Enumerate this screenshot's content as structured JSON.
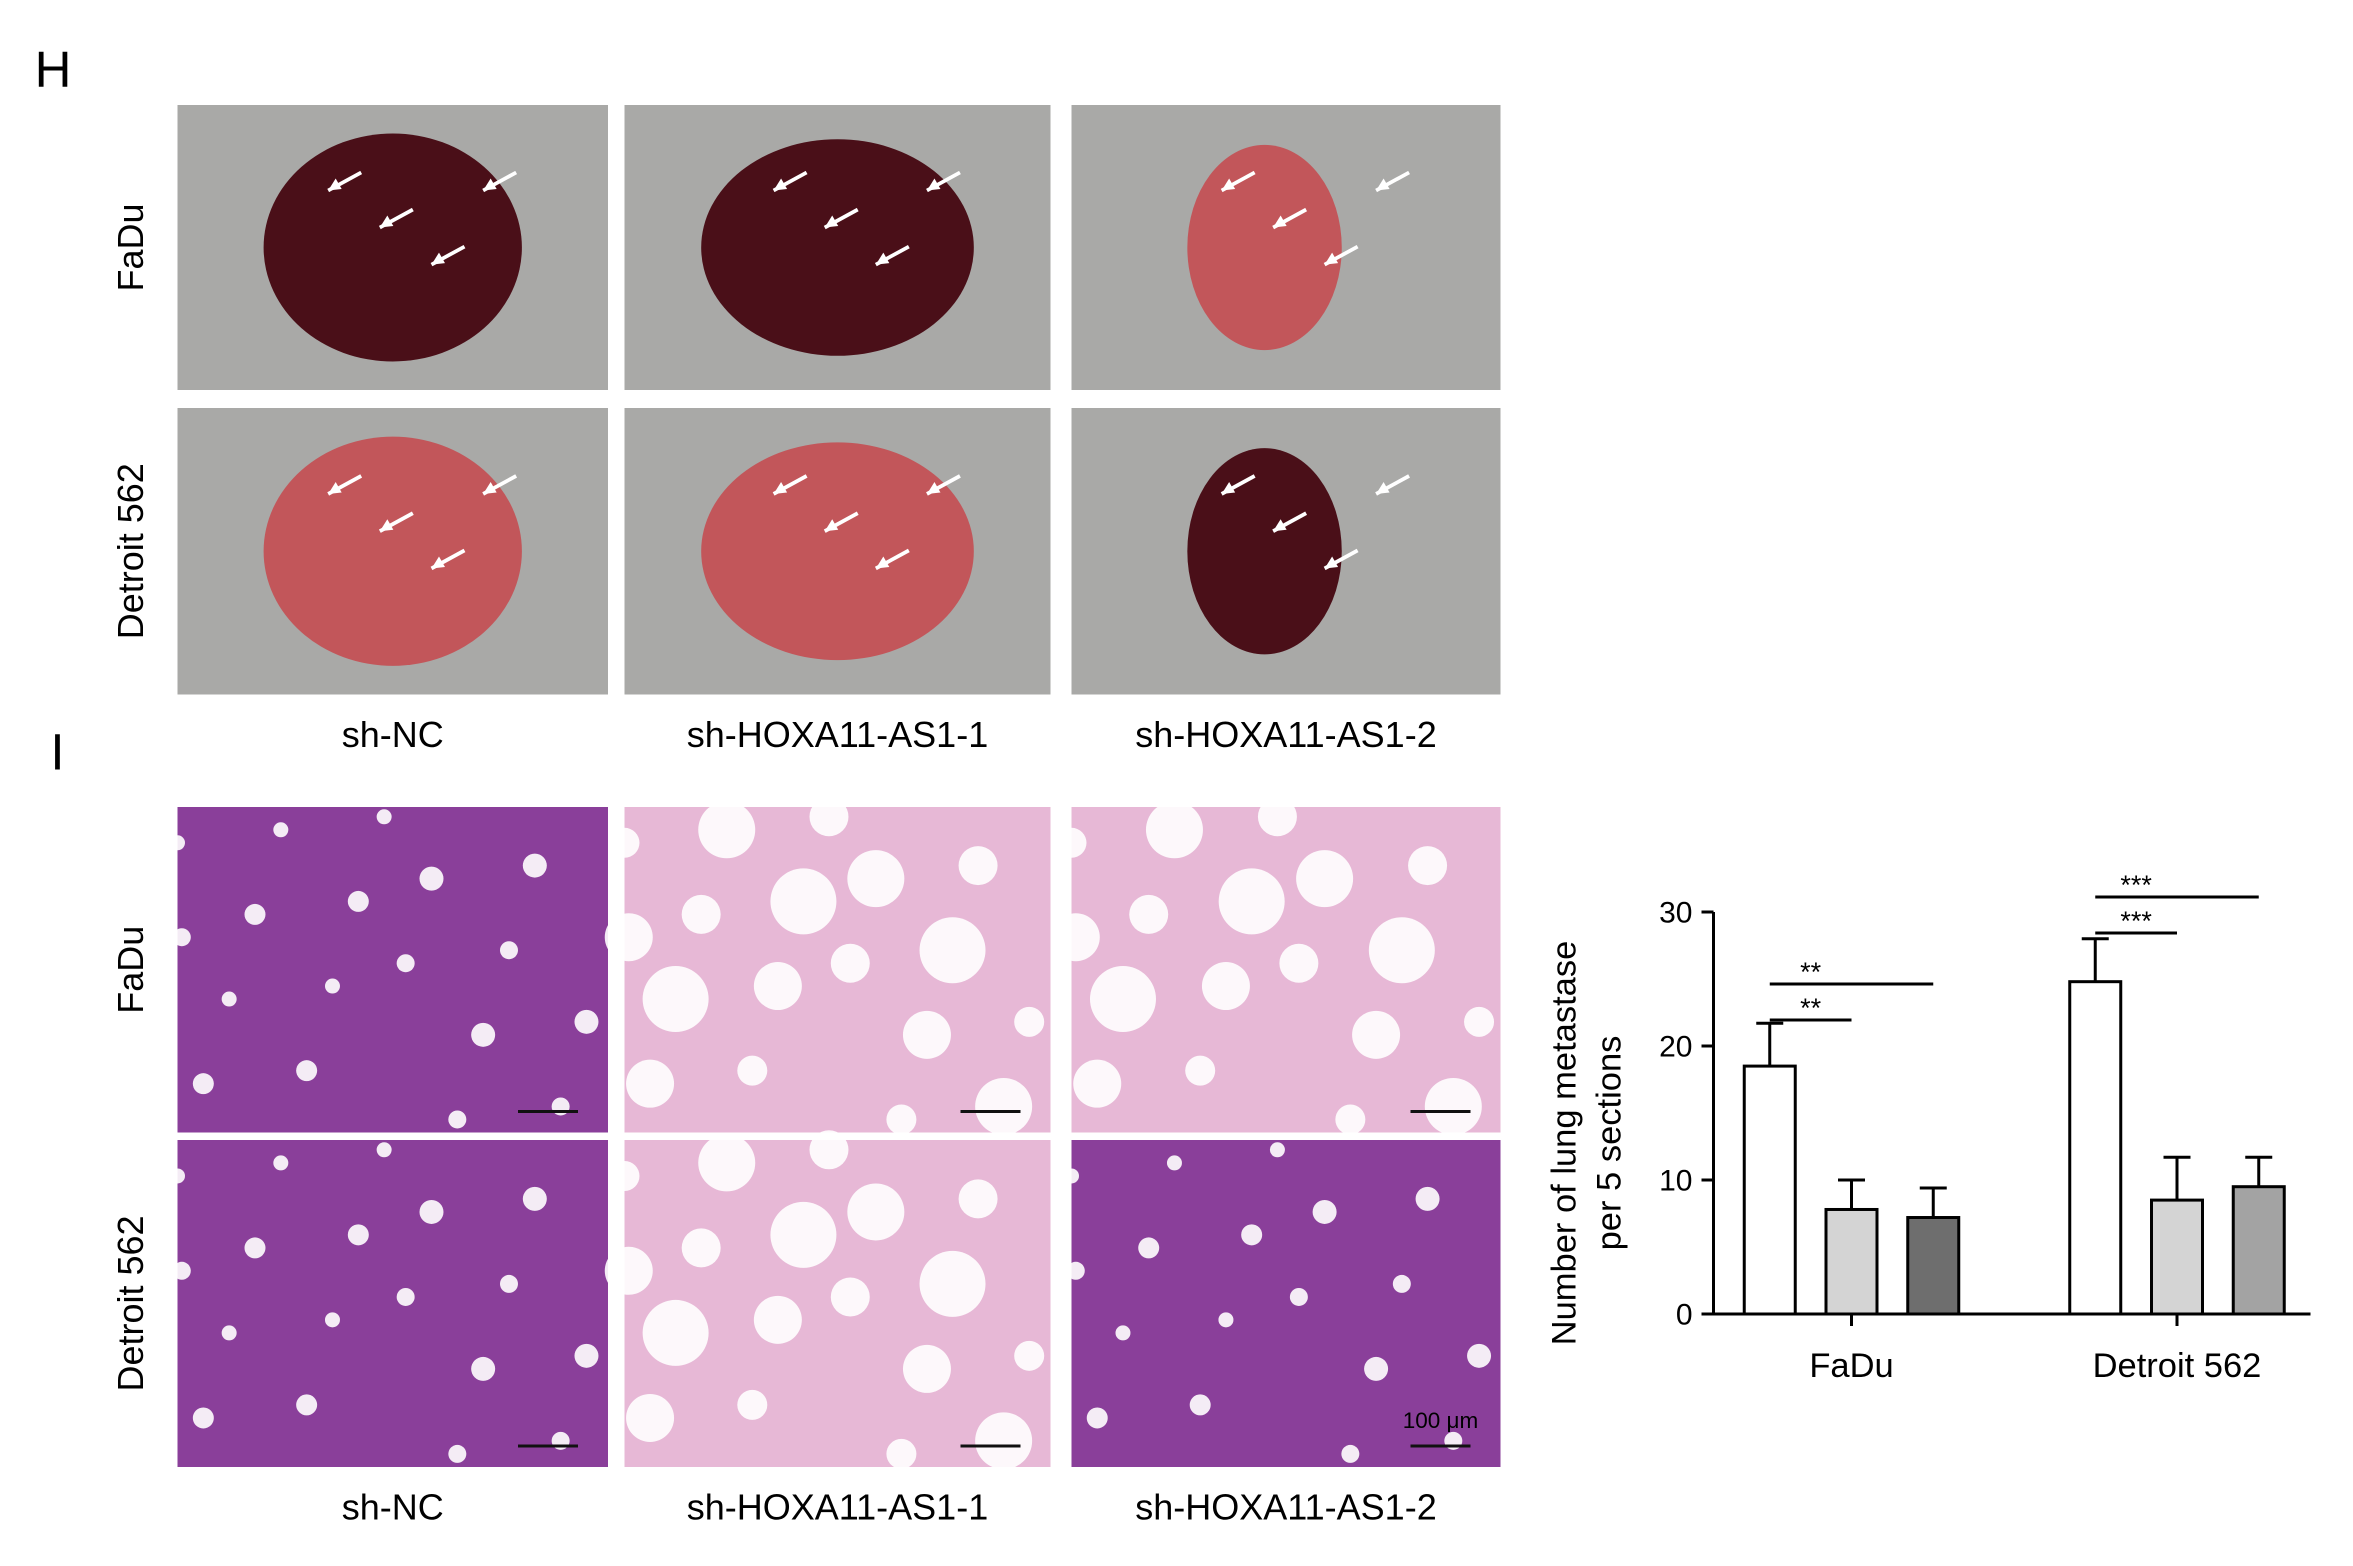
{
  "panels": [
    {
      "label": "H",
      "rows": [
        "FaDu",
        "Detroit 562"
      ],
      "columns": [
        "sh-NC",
        "sh-HOXA11-AS1-1",
        "sh-HOXA11-AS1-2"
      ]
    },
    {
      "label": "I",
      "rows": [
        "FaDu",
        "Detroit 562"
      ],
      "columns": [
        "sh-NC",
        "sh-HOXA11-AS1-1",
        "sh-HOXA11-AS1-2"
      ],
      "scale_bar": "100 μm"
    }
  ],
  "chart_data": {
    "type": "bar",
    "y_label": [
      "Number of lung metastase",
      "per 5 sections"
    ],
    "categories": [
      "FaDu",
      "Detroit 562"
    ],
    "series": [
      {
        "colors": [
          "#ffffff",
          "#ffffff"
        ],
        "values": [
          18.5,
          24.8
        ],
        "errors": [
          3.2,
          3.2
        ]
      },
      {
        "colors": [
          "#d4d4d4",
          "#d4d4d4"
        ],
        "values": [
          7.8,
          8.5
        ],
        "errors": [
          2.2,
          3.2
        ]
      },
      {
        "colors": [
          "#6e6e6e",
          "#a3a3a3"
        ],
        "values": [
          7.2,
          9.5
        ],
        "errors": [
          2.2,
          2.2
        ]
      }
    ],
    "ylim": [
      0,
      30
    ],
    "yticks": [
      0,
      10,
      20,
      30
    ],
    "significance": [
      {
        "label": "**"
      },
      {
        "label": "**"
      },
      {
        "label": "***"
      },
      {
        "label": "***"
      }
    ]
  }
}
